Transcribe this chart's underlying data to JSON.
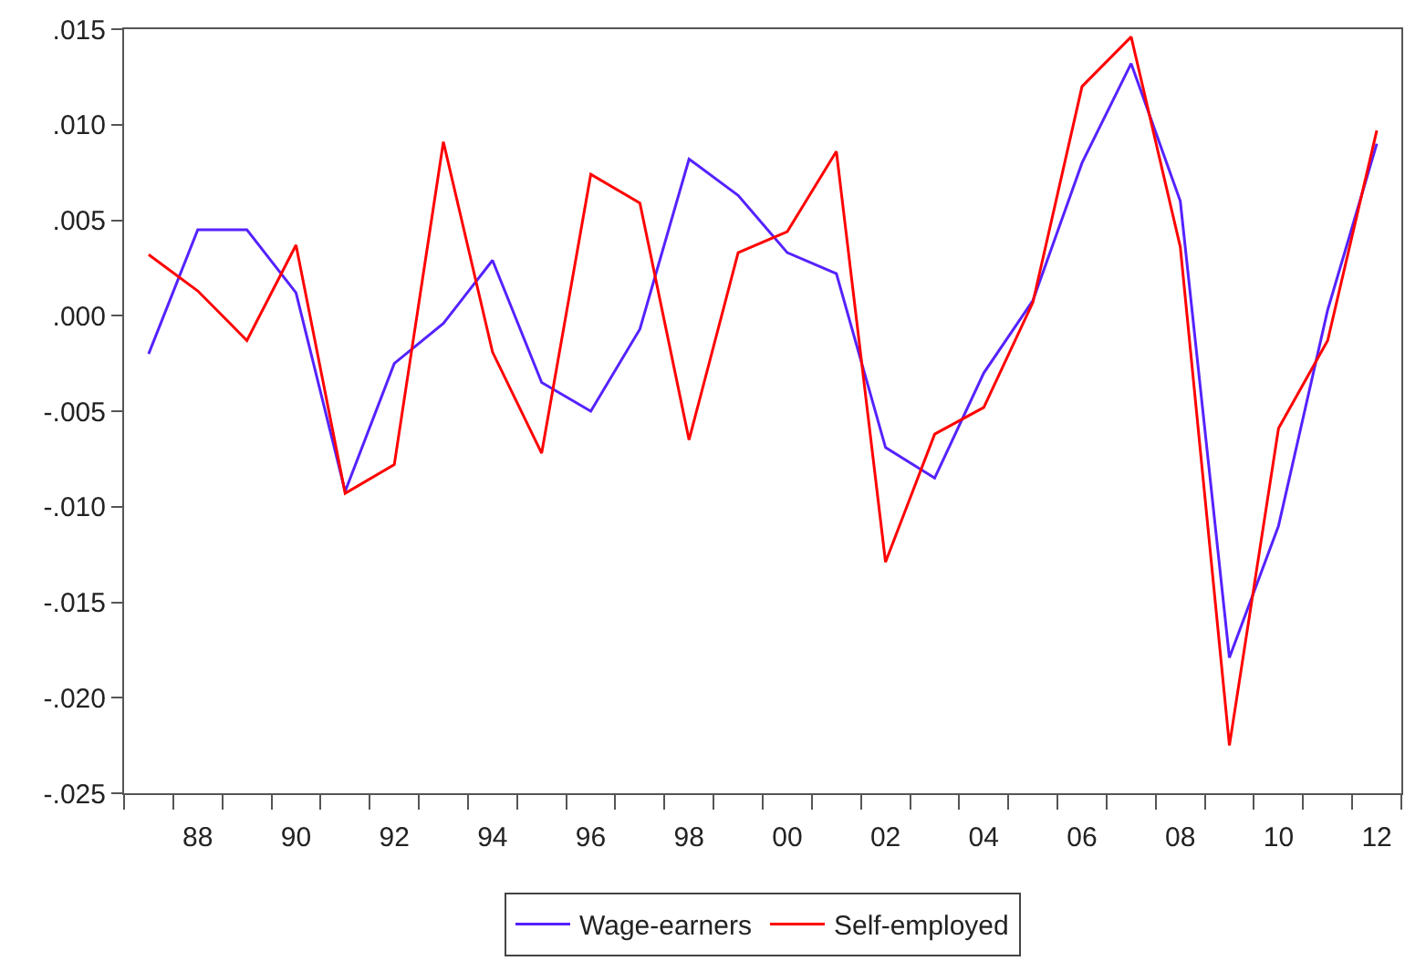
{
  "chart_data": {
    "type": "line",
    "x": [
      1987,
      1988,
      1989,
      1990,
      1991,
      1992,
      1993,
      1994,
      1995,
      1996,
      1997,
      1998,
      1999,
      2000,
      2001,
      2002,
      2003,
      2004,
      2005,
      2006,
      2007,
      2008,
      2009,
      2010,
      2011,
      2012
    ],
    "series": [
      {
        "name": "Wage-earners",
        "color": "#5522ff",
        "values": [
          -0.002,
          0.0045,
          0.0045,
          0.0012,
          -0.0092,
          -0.0025,
          -0.0004,
          0.0029,
          -0.0035,
          -0.005,
          -0.0007,
          0.0082,
          0.0063,
          0.0033,
          0.0022,
          -0.0069,
          -0.0085,
          -0.003,
          0.0008,
          0.008,
          0.0132,
          0.006,
          -0.0179,
          -0.011,
          0.0003,
          0.009
        ]
      },
      {
        "name": "Self-employed",
        "color": "#ff0000",
        "values": [
          0.0032,
          0.0013,
          -0.0013,
          0.0037,
          -0.0093,
          -0.0078,
          0.0091,
          -0.0019,
          -0.0072,
          0.0074,
          0.0059,
          -0.0065,
          0.0033,
          0.0044,
          0.0086,
          -0.0129,
          -0.0062,
          -0.0048,
          0.0007,
          0.012,
          0.0146,
          0.0036,
          -0.0225,
          -0.0059,
          -0.0013,
          0.0097
        ]
      }
    ],
    "xlim": [
      1986.5,
      2012.5
    ],
    "xticks": [
      {
        "value": 1986.5,
        "label": null
      },
      {
        "value": 1987.5,
        "label": null
      },
      {
        "value": 1988,
        "label": "88"
      },
      {
        "value": 1988.5,
        "label": null
      },
      {
        "value": 1989.5,
        "label": null
      },
      {
        "value": 1990,
        "label": "90"
      },
      {
        "value": 1990.5,
        "label": null
      },
      {
        "value": 1991.5,
        "label": null
      },
      {
        "value": 1992,
        "label": "92"
      },
      {
        "value": 1992.5,
        "label": null
      },
      {
        "value": 1993.5,
        "label": null
      },
      {
        "value": 1994,
        "label": "94"
      },
      {
        "value": 1994.5,
        "label": null
      },
      {
        "value": 1995.5,
        "label": null
      },
      {
        "value": 1996,
        "label": "96"
      },
      {
        "value": 1996.5,
        "label": null
      },
      {
        "value": 1997.5,
        "label": null
      },
      {
        "value": 1998,
        "label": "98"
      },
      {
        "value": 1998.5,
        "label": null
      },
      {
        "value": 1999.5,
        "label": null
      },
      {
        "value": 2000,
        "label": "00"
      },
      {
        "value": 2000.5,
        "label": null
      },
      {
        "value": 2001.5,
        "label": null
      },
      {
        "value": 2002,
        "label": "02"
      },
      {
        "value": 2002.5,
        "label": null
      },
      {
        "value": 2003.5,
        "label": null
      },
      {
        "value": 2004,
        "label": "04"
      },
      {
        "value": 2004.5,
        "label": null
      },
      {
        "value": 2005.5,
        "label": null
      },
      {
        "value": 2006,
        "label": "06"
      },
      {
        "value": 2006.5,
        "label": null
      },
      {
        "value": 2007.5,
        "label": null
      },
      {
        "value": 2008,
        "label": "08"
      },
      {
        "value": 2008.5,
        "label": null
      },
      {
        "value": 2009.5,
        "label": null
      },
      {
        "value": 2010,
        "label": "10"
      },
      {
        "value": 2010.5,
        "label": null
      },
      {
        "value": 2011.5,
        "label": null
      },
      {
        "value": 2012,
        "label": "12"
      },
      {
        "value": 2012.5,
        "label": null
      }
    ],
    "ylim": [
      -0.025,
      0.015
    ],
    "yticks": [
      {
        "value": -0.025,
        "label": "-.025"
      },
      {
        "value": -0.02,
        "label": "-.020"
      },
      {
        "value": -0.015,
        "label": "-.015"
      },
      {
        "value": -0.01,
        "label": "-.010"
      },
      {
        "value": -0.005,
        "label": "-.005"
      },
      {
        "value": 0.0,
        "label": ".000"
      },
      {
        "value": 0.005,
        "label": ".005"
      },
      {
        "value": 0.01,
        "label": ".010"
      },
      {
        "value": 0.015,
        "label": ".015"
      }
    ],
    "legend": "bottom",
    "line_style": "solid",
    "marker": "none"
  }
}
